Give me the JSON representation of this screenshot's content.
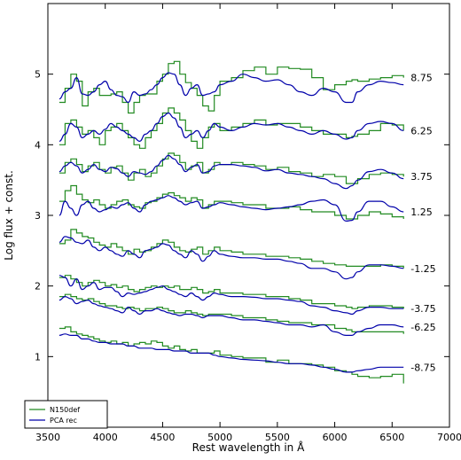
{
  "chart_data": {
    "type": "line",
    "title": "",
    "xlabel": "Rest wavelength in Å",
    "ylabel": "Log flux + const.",
    "xlim": [
      3500,
      7000
    ],
    "ylim": [
      0,
      6
    ],
    "xticks": [
      3500,
      4000,
      4500,
      5000,
      5500,
      6000,
      6500,
      7000
    ],
    "yticks": [
      1,
      2,
      3,
      4,
      5
    ],
    "grid": false,
    "legend_position": "bottom-left",
    "series": [
      {
        "name": "N150def",
        "color": "#228b22",
        "style": "step"
      },
      {
        "name": "PCA rec",
        "color": "#0000aa",
        "style": "line"
      }
    ],
    "epochs": [
      {
        "label": "8.75",
        "x": [
          3600,
          3650,
          3700,
          3750,
          3800,
          3850,
          3900,
          3950,
          4000,
          4050,
          4100,
          4150,
          4200,
          4250,
          4300,
          4350,
          4400,
          4450,
          4500,
          4550,
          4600,
          4650,
          4700,
          4750,
          4800,
          4850,
          4900,
          4950,
          5000,
          5100,
          5200,
          5300,
          5400,
          5500,
          5600,
          5700,
          5800,
          5900,
          6000,
          6100,
          6150,
          6200,
          6300,
          6400,
          6500,
          6600
        ],
        "obs": [
          4.6,
          4.8,
          5.0,
          4.9,
          4.55,
          4.75,
          4.8,
          4.7,
          4.7,
          4.72,
          4.75,
          4.6,
          4.45,
          4.6,
          4.7,
          4.72,
          4.72,
          4.9,
          5.0,
          5.15,
          5.18,
          5.0,
          4.88,
          4.8,
          4.7,
          4.55,
          4.48,
          4.7,
          4.9,
          4.95,
          5.05,
          5.1,
          5.0,
          5.1,
          5.08,
          5.07,
          4.95,
          4.78,
          4.85,
          4.9,
          4.92,
          4.9,
          4.93,
          4.95,
          4.98,
          4.95
        ],
        "pca": [
          4.65,
          4.75,
          4.8,
          4.95,
          4.72,
          4.7,
          4.75,
          4.85,
          4.9,
          4.78,
          4.7,
          4.68,
          4.6,
          4.75,
          4.7,
          4.72,
          4.78,
          4.85,
          4.95,
          5.02,
          5.0,
          4.85,
          4.7,
          4.8,
          4.85,
          4.7,
          4.72,
          4.75,
          4.85,
          4.9,
          5.0,
          4.95,
          4.9,
          4.92,
          4.85,
          4.75,
          4.7,
          4.8,
          4.75,
          4.6,
          4.6,
          4.75,
          4.85,
          4.9,
          4.88,
          4.85
        ]
      },
      {
        "label": "6.25",
        "x": [
          3600,
          3650,
          3700,
          3750,
          3800,
          3850,
          3900,
          3950,
          4000,
          4050,
          4100,
          4150,
          4200,
          4250,
          4300,
          4350,
          4400,
          4450,
          4500,
          4550,
          4600,
          4650,
          4700,
          4750,
          4800,
          4850,
          4900,
          4950,
          5000,
          5100,
          5200,
          5300,
          5400,
          5500,
          5600,
          5700,
          5800,
          5900,
          6000,
          6100,
          6150,
          6200,
          6300,
          6400,
          6500,
          6600
        ],
        "obs": [
          4.0,
          4.3,
          4.35,
          4.25,
          4.15,
          4.2,
          4.1,
          4.0,
          4.2,
          4.25,
          4.3,
          4.2,
          4.1,
          4.0,
          3.95,
          4.1,
          4.2,
          4.3,
          4.45,
          4.52,
          4.45,
          4.35,
          4.2,
          4.05,
          3.95,
          4.1,
          4.25,
          4.3,
          4.2,
          4.25,
          4.3,
          4.35,
          4.28,
          4.3,
          4.3,
          4.25,
          4.2,
          4.15,
          4.15,
          4.1,
          4.12,
          4.15,
          4.2,
          4.3,
          4.28,
          4.2
        ],
        "pca": [
          4.05,
          4.15,
          4.3,
          4.25,
          4.1,
          4.15,
          4.2,
          4.15,
          4.22,
          4.3,
          4.25,
          4.2,
          4.15,
          4.1,
          4.05,
          4.15,
          4.2,
          4.3,
          4.4,
          4.45,
          4.38,
          4.25,
          4.1,
          4.15,
          4.2,
          4.1,
          4.2,
          4.3,
          4.25,
          4.2,
          4.25,
          4.3,
          4.28,
          4.3,
          4.25,
          4.2,
          4.15,
          4.2,
          4.15,
          4.08,
          4.1,
          4.2,
          4.3,
          4.33,
          4.3,
          4.2
        ]
      },
      {
        "label": "3.75",
        "x": [
          3600,
          3650,
          3700,
          3750,
          3800,
          3850,
          3900,
          3950,
          4000,
          4050,
          4100,
          4150,
          4200,
          4250,
          4300,
          4350,
          4400,
          4450,
          4500,
          4550,
          4600,
          4650,
          4700,
          4750,
          4800,
          4850,
          4900,
          4950,
          5000,
          5100,
          5200,
          5300,
          5400,
          5500,
          5600,
          5700,
          5800,
          5900,
          6000,
          6100,
          6150,
          6200,
          6300,
          6400,
          6500,
          6600
        ],
        "obs": [
          3.6,
          3.75,
          3.8,
          3.72,
          3.62,
          3.7,
          3.75,
          3.65,
          3.6,
          3.68,
          3.7,
          3.6,
          3.5,
          3.6,
          3.65,
          3.55,
          3.6,
          3.7,
          3.8,
          3.88,
          3.85,
          3.75,
          3.65,
          3.7,
          3.75,
          3.6,
          3.65,
          3.75,
          3.72,
          3.75,
          3.72,
          3.7,
          3.65,
          3.68,
          3.62,
          3.6,
          3.55,
          3.58,
          3.55,
          3.45,
          3.45,
          3.52,
          3.58,
          3.6,
          3.58,
          3.55
        ],
        "pca": [
          3.62,
          3.7,
          3.75,
          3.7,
          3.6,
          3.65,
          3.72,
          3.65,
          3.62,
          3.68,
          3.66,
          3.6,
          3.55,
          3.62,
          3.6,
          3.58,
          3.62,
          3.7,
          3.78,
          3.85,
          3.8,
          3.72,
          3.62,
          3.68,
          3.72,
          3.6,
          3.62,
          3.7,
          3.72,
          3.72,
          3.7,
          3.68,
          3.63,
          3.65,
          3.6,
          3.58,
          3.55,
          3.52,
          3.45,
          3.38,
          3.42,
          3.5,
          3.62,
          3.65,
          3.6,
          3.52
        ]
      },
      {
        "label": "1.25",
        "x": [
          3600,
          3650,
          3700,
          3750,
          3800,
          3850,
          3900,
          3950,
          4000,
          4050,
          4100,
          4150,
          4200,
          4250,
          4300,
          4350,
          4400,
          4450,
          4500,
          4550,
          4600,
          4650,
          4700,
          4750,
          4800,
          4850,
          4900,
          4950,
          5000,
          5100,
          5200,
          5300,
          5400,
          5500,
          5600,
          5700,
          5800,
          5900,
          6000,
          6100,
          6150,
          6200,
          6300,
          6400,
          6500,
          6600
        ],
        "obs": [
          3.2,
          3.35,
          3.42,
          3.3,
          3.22,
          3.18,
          3.22,
          3.15,
          3.1,
          3.15,
          3.2,
          3.22,
          3.15,
          3.12,
          3.1,
          3.18,
          3.2,
          3.25,
          3.3,
          3.32,
          3.28,
          3.25,
          3.2,
          3.25,
          3.22,
          3.1,
          3.15,
          3.2,
          3.2,
          3.18,
          3.15,
          3.15,
          3.1,
          3.1,
          3.12,
          3.08,
          3.05,
          3.05,
          3.0,
          2.95,
          2.95,
          3.0,
          3.05,
          3.02,
          2.98,
          2.95
        ],
        "pca": [
          3.0,
          3.2,
          3.1,
          3.0,
          3.15,
          3.2,
          3.1,
          3.05,
          3.08,
          3.12,
          3.1,
          3.15,
          3.18,
          3.1,
          3.05,
          3.15,
          3.2,
          3.22,
          3.25,
          3.28,
          3.25,
          3.2,
          3.15,
          3.18,
          3.2,
          3.1,
          3.12,
          3.15,
          3.18,
          3.15,
          3.12,
          3.1,
          3.08,
          3.1,
          3.12,
          3.15,
          3.2,
          3.22,
          3.15,
          2.92,
          2.93,
          3.05,
          3.2,
          3.2,
          3.12,
          3.05
        ]
      },
      {
        "label": "-1.25",
        "x": [
          3600,
          3650,
          3700,
          3750,
          3800,
          3850,
          3900,
          3950,
          4000,
          4050,
          4100,
          4150,
          4200,
          4250,
          4300,
          4350,
          4400,
          4450,
          4500,
          4550,
          4600,
          4650,
          4700,
          4750,
          4800,
          4850,
          4900,
          4950,
          5000,
          5100,
          5200,
          5300,
          5400,
          5500,
          5600,
          5700,
          5800,
          5900,
          6000,
          6100,
          6150,
          6200,
          6300,
          6400,
          6500,
          6600
        ],
        "obs": [
          2.6,
          2.65,
          2.8,
          2.75,
          2.7,
          2.68,
          2.62,
          2.58,
          2.55,
          2.6,
          2.55,
          2.5,
          2.45,
          2.52,
          2.48,
          2.5,
          2.55,
          2.6,
          2.65,
          2.62,
          2.55,
          2.5,
          2.48,
          2.52,
          2.55,
          2.45,
          2.5,
          2.55,
          2.5,
          2.48,
          2.45,
          2.45,
          2.42,
          2.42,
          2.4,
          2.38,
          2.35,
          2.32,
          2.3,
          2.28,
          2.28,
          2.28,
          2.28,
          2.3,
          2.28,
          2.25
        ],
        "pca": [
          2.62,
          2.7,
          2.68,
          2.62,
          2.6,
          2.65,
          2.55,
          2.5,
          2.55,
          2.5,
          2.45,
          2.42,
          2.5,
          2.45,
          2.4,
          2.5,
          2.52,
          2.55,
          2.6,
          2.58,
          2.5,
          2.45,
          2.4,
          2.5,
          2.45,
          2.35,
          2.42,
          2.5,
          2.45,
          2.42,
          2.4,
          2.4,
          2.38,
          2.38,
          2.35,
          2.32,
          2.25,
          2.25,
          2.2,
          2.1,
          2.12,
          2.2,
          2.3,
          2.3,
          2.28,
          2.25
        ]
      },
      {
        "label": "-3.75",
        "x": [
          3600,
          3650,
          3700,
          3750,
          3800,
          3850,
          3900,
          3950,
          4000,
          4050,
          4100,
          4150,
          4200,
          4250,
          4300,
          4350,
          4400,
          4450,
          4500,
          4550,
          4600,
          4650,
          4700,
          4750,
          4800,
          4850,
          4900,
          4950,
          5000,
          5100,
          5200,
          5300,
          5400,
          5500,
          5600,
          5700,
          5800,
          5900,
          6000,
          6100,
          6150,
          6200,
          6300,
          6400,
          6500,
          6600
        ],
        "obs": [
          2.12,
          2.15,
          2.1,
          2.05,
          2.0,
          2.05,
          2.08,
          2.05,
          2.0,
          2.02,
          1.98,
          2.0,
          1.95,
          1.92,
          1.95,
          1.98,
          2.0,
          1.98,
          2.0,
          1.98,
          2.0,
          1.95,
          1.95,
          1.98,
          1.95,
          1.9,
          1.92,
          1.95,
          1.9,
          1.9,
          1.88,
          1.88,
          1.85,
          1.85,
          1.82,
          1.8,
          1.75,
          1.75,
          1.72,
          1.7,
          1.68,
          1.7,
          1.72,
          1.72,
          1.7,
          1.68
        ],
        "pca": [
          2.15,
          2.12,
          2.0,
          2.1,
          1.95,
          2.0,
          2.05,
          1.95,
          1.98,
          1.98,
          1.92,
          1.85,
          1.9,
          1.88,
          1.9,
          1.92,
          1.95,
          1.98,
          2.0,
          1.95,
          1.92,
          1.88,
          1.85,
          1.9,
          1.85,
          1.8,
          1.85,
          1.9,
          1.88,
          1.85,
          1.85,
          1.84,
          1.82,
          1.82,
          1.8,
          1.78,
          1.72,
          1.7,
          1.65,
          1.62,
          1.6,
          1.65,
          1.7,
          1.7,
          1.68,
          1.68
        ]
      },
      {
        "label": "-6.25",
        "x": [
          3600,
          3650,
          3700,
          3750,
          3800,
          3850,
          3900,
          3950,
          4000,
          4050,
          4100,
          4150,
          4200,
          4250,
          4300,
          4350,
          4400,
          4450,
          4500,
          4550,
          4600,
          4650,
          4700,
          4750,
          4800,
          4850,
          4900,
          4950,
          5000,
          5100,
          5200,
          5300,
          5400,
          5500,
          5600,
          5700,
          5800,
          5900,
          6000,
          6100,
          6150,
          6200,
          6300,
          6400,
          6500,
          6600
        ],
        "obs": [
          1.85,
          1.88,
          1.85,
          1.82,
          1.8,
          1.82,
          1.78,
          1.75,
          1.72,
          1.72,
          1.7,
          1.68,
          1.7,
          1.68,
          1.65,
          1.68,
          1.68,
          1.7,
          1.68,
          1.65,
          1.62,
          1.62,
          1.65,
          1.62,
          1.6,
          1.58,
          1.6,
          1.6,
          1.6,
          1.58,
          1.55,
          1.55,
          1.52,
          1.5,
          1.48,
          1.48,
          1.45,
          1.45,
          1.4,
          1.38,
          1.35,
          1.35,
          1.35,
          1.35,
          1.35,
          1.32
        ],
        "pca": [
          1.8,
          1.85,
          1.82,
          1.75,
          1.78,
          1.8,
          1.75,
          1.72,
          1.7,
          1.68,
          1.65,
          1.62,
          1.7,
          1.65,
          1.6,
          1.65,
          1.65,
          1.68,
          1.65,
          1.62,
          1.6,
          1.58,
          1.6,
          1.6,
          1.58,
          1.55,
          1.58,
          1.58,
          1.58,
          1.55,
          1.52,
          1.52,
          1.5,
          1.48,
          1.45,
          1.45,
          1.42,
          1.45,
          1.35,
          1.3,
          1.3,
          1.35,
          1.4,
          1.45,
          1.45,
          1.42
        ]
      },
      {
        "label": "-8.75",
        "x": [
          3600,
          3650,
          3700,
          3750,
          3800,
          3850,
          3900,
          3950,
          4000,
          4050,
          4100,
          4150,
          4200,
          4250,
          4300,
          4350,
          4400,
          4450,
          4500,
          4550,
          4600,
          4650,
          4700,
          4750,
          4800,
          4850,
          4900,
          4950,
          5000,
          5100,
          5200,
          5300,
          5400,
          5500,
          5600,
          5700,
          5800,
          5900,
          6000,
          6100,
          6150,
          6200,
          6300,
          6400,
          6500,
          6600
        ],
        "obs": [
          1.4,
          1.42,
          1.35,
          1.32,
          1.3,
          1.28,
          1.25,
          1.22,
          1.2,
          1.22,
          1.18,
          1.2,
          1.15,
          1.18,
          1.2,
          1.18,
          1.22,
          1.2,
          1.15,
          1.12,
          1.15,
          1.1,
          1.08,
          1.1,
          1.05,
          1.05,
          1.05,
          1.08,
          1.02,
          1.0,
          0.98,
          0.98,
          0.92,
          0.95,
          0.9,
          0.9,
          0.88,
          0.85,
          0.8,
          0.78,
          0.75,
          0.72,
          0.7,
          0.72,
          0.75,
          0.62
        ],
        "pca": [
          1.3,
          1.32,
          1.3,
          1.3,
          1.25,
          1.25,
          1.22,
          1.2,
          1.2,
          1.18,
          1.18,
          1.18,
          1.15,
          1.15,
          1.12,
          1.12,
          1.12,
          1.1,
          1.1,
          1.1,
          1.08,
          1.08,
          1.08,
          1.05,
          1.05,
          1.05,
          1.05,
          1.02,
          1.0,
          0.98,
          0.96,
          0.95,
          0.94,
          0.92,
          0.9,
          0.9,
          0.88,
          0.85,
          0.82,
          0.78,
          0.78,
          0.8,
          0.82,
          0.85,
          0.85,
          0.85
        ]
      }
    ]
  }
}
